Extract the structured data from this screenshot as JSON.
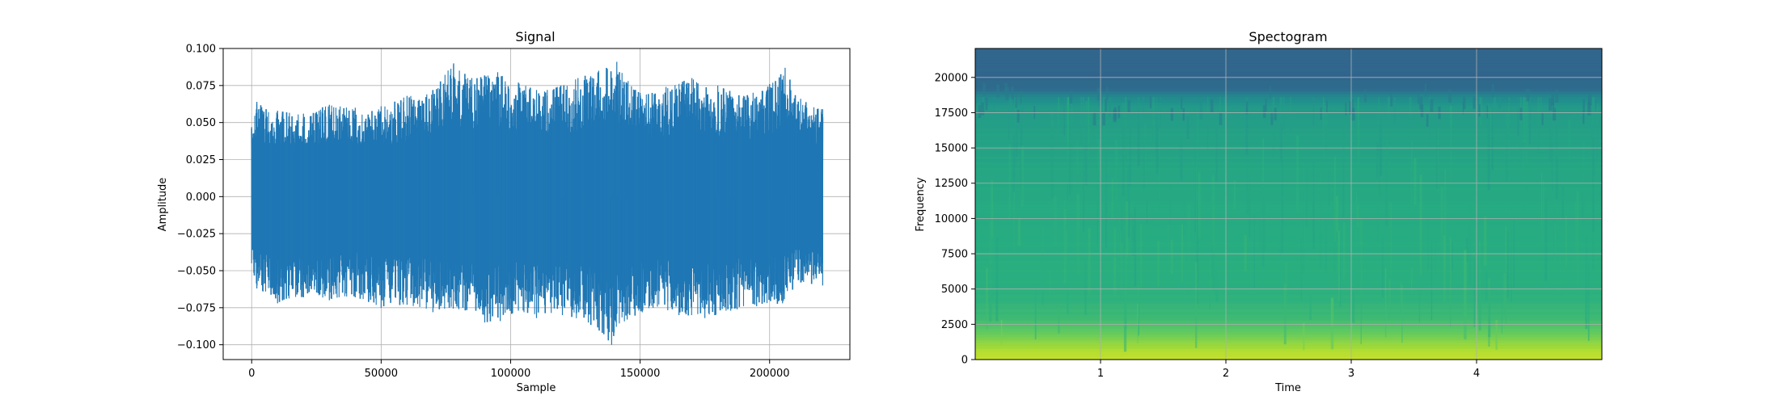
{
  "chart_data": [
    {
      "type": "line",
      "title": "Signal",
      "xlabel": "Sample",
      "ylabel": "Amplitude",
      "xlim": [
        -11000,
        231000
      ],
      "ylim": [
        -0.11,
        0.1
      ],
      "x_ticks": [
        0,
        50000,
        100000,
        150000,
        200000
      ],
      "x_tick_labels": [
        "0",
        "50000",
        "100000",
        "150000",
        "200000"
      ],
      "y_ticks": [
        -0.1,
        -0.075,
        -0.05,
        -0.025,
        0.0,
        0.025,
        0.05,
        0.075,
        0.1
      ],
      "y_tick_labels": [
        "−0.100",
        "−0.075",
        "−0.050",
        "−0.025",
        "0.000",
        "0.025",
        "0.050",
        "0.075",
        "0.100"
      ],
      "grid": true,
      "color": "#1f77b4",
      "x_range": [
        0,
        220500
      ],
      "envelope_upper": [
        [
          0,
          0.047
        ],
        [
          2000,
          0.064
        ],
        [
          10000,
          0.058
        ],
        [
          20000,
          0.056
        ],
        [
          30000,
          0.062
        ],
        [
          40000,
          0.06
        ],
        [
          50000,
          0.061
        ],
        [
          60000,
          0.068
        ],
        [
          70000,
          0.072
        ],
        [
          78000,
          0.09
        ],
        [
          85000,
          0.08
        ],
        [
          95000,
          0.084
        ],
        [
          103000,
          0.077
        ],
        [
          110000,
          0.072
        ],
        [
          118000,
          0.074
        ],
        [
          126000,
          0.08
        ],
        [
          134000,
          0.085
        ],
        [
          141000,
          0.091
        ],
        [
          150000,
          0.07
        ],
        [
          160000,
          0.074
        ],
        [
          170000,
          0.08
        ],
        [
          180000,
          0.075
        ],
        [
          190000,
          0.068
        ],
        [
          200000,
          0.076
        ],
        [
          206000,
          0.087
        ],
        [
          212000,
          0.066
        ],
        [
          220500,
          0.059
        ]
      ],
      "envelope_lower": [
        [
          0,
          -0.045
        ],
        [
          2000,
          -0.062
        ],
        [
          10000,
          -0.072
        ],
        [
          20000,
          -0.068
        ],
        [
          30000,
          -0.07
        ],
        [
          40000,
          -0.068
        ],
        [
          50000,
          -0.075
        ],
        [
          60000,
          -0.073
        ],
        [
          70000,
          -0.078
        ],
        [
          80000,
          -0.076
        ],
        [
          90000,
          -0.085
        ],
        [
          96000,
          -0.084
        ],
        [
          103000,
          -0.077
        ],
        [
          110000,
          -0.082
        ],
        [
          120000,
          -0.08
        ],
        [
          130000,
          -0.085
        ],
        [
          139000,
          -0.1
        ],
        [
          145000,
          -0.083
        ],
        [
          155000,
          -0.075
        ],
        [
          165000,
          -0.08
        ],
        [
          175000,
          -0.082
        ],
        [
          185000,
          -0.077
        ],
        [
          195000,
          -0.074
        ],
        [
          205000,
          -0.072
        ],
        [
          212000,
          -0.058
        ],
        [
          220500,
          -0.06
        ]
      ]
    },
    {
      "type": "heatmap",
      "title": "Spectogram",
      "xlabel": "Time",
      "ylabel": "Frequency",
      "xlim": [
        0,
        5.0
      ],
      "ylim": [
        0,
        22050
      ],
      "x_ticks": [
        1,
        2,
        3,
        4
      ],
      "x_tick_labels": [
        "1",
        "2",
        "3",
        "4"
      ],
      "y_ticks": [
        0,
        2500,
        5000,
        7500,
        10000,
        12500,
        15000,
        17500,
        20000
      ],
      "y_tick_labels": [
        "0",
        "2500",
        "5000",
        "7500",
        "10000",
        "12500",
        "15000",
        "17500",
        "20000"
      ],
      "grid": true,
      "colormap": "viridis",
      "frequency_levels": [
        [
          0,
          0.93
        ],
        [
          1000,
          0.86
        ],
        [
          2000,
          0.76
        ],
        [
          3000,
          0.68
        ],
        [
          5000,
          0.64
        ],
        [
          8000,
          0.63
        ],
        [
          12000,
          0.61
        ],
        [
          16000,
          0.58
        ],
        [
          18000,
          0.54
        ],
        [
          18800,
          0.45
        ],
        [
          19200,
          0.36
        ],
        [
          20000,
          0.34
        ],
        [
          22050,
          0.33
        ]
      ]
    }
  ]
}
